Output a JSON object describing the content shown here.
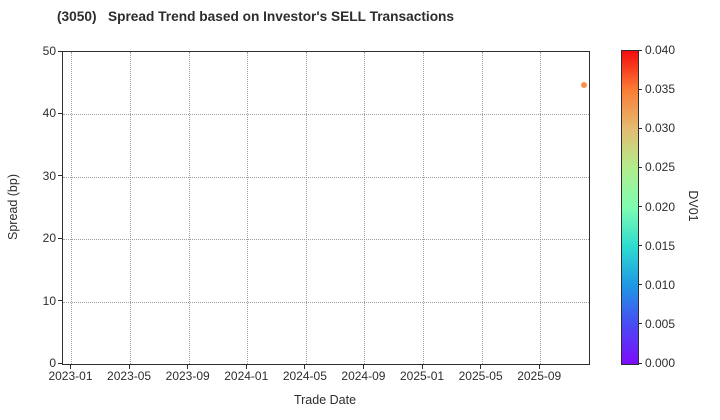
{
  "chart_data": {
    "type": "scatter",
    "title": "(3050)   Spread Trend based on Investor's SELL Transactions",
    "grid": "dotted",
    "legend": "none",
    "x_axis": {
      "label": "Trade Date",
      "tick_labels": [
        "2023-01",
        "2023-05",
        "2023-09",
        "2024-01",
        "2024-05",
        "2024-09",
        "2025-01",
        "2025-05",
        "2025-09"
      ],
      "lim_months": [
        -0.58,
        35.33
      ]
    },
    "y_axis": {
      "label": "Spread (bp)",
      "ticks": [
        0,
        10,
        20,
        30,
        40,
        50
      ],
      "lim": [
        0,
        50
      ]
    },
    "points": [
      {
        "date": "2025-12",
        "spread_bp": 44.7,
        "dv01": 0.034,
        "color": "#f9914c"
      }
    ],
    "colorbar": {
      "label": "DV01",
      "vmin": 0.0,
      "vmax": 0.04,
      "tick_labels_bottom_to_top": [
        "0.000",
        "0.005",
        "0.010",
        "0.015",
        "0.020",
        "0.025",
        "0.030",
        "0.035",
        "0.040"
      ],
      "colormap": "rainbow",
      "gradient_stops_bottom_to_top": [
        {
          "at": 0.0,
          "color": "#7c0cfa"
        },
        {
          "at": 0.125,
          "color": "#4a4af4"
        },
        {
          "at": 0.25,
          "color": "#1f97e3"
        },
        {
          "at": 0.375,
          "color": "#2edbd0"
        },
        {
          "at": 0.5,
          "color": "#7efcb1"
        },
        {
          "at": 0.625,
          "color": "#b2ed8d"
        },
        {
          "at": 0.75,
          "color": "#e3bc72"
        },
        {
          "at": 0.875,
          "color": "#fa7d36"
        },
        {
          "at": 1.0,
          "color": "#f30c0c"
        }
      ]
    },
    "colors": {
      "text": "#2d2d2d",
      "grid": "#9e9e9e",
      "spine": "#2d2d2d",
      "background": "#ffffff"
    }
  }
}
